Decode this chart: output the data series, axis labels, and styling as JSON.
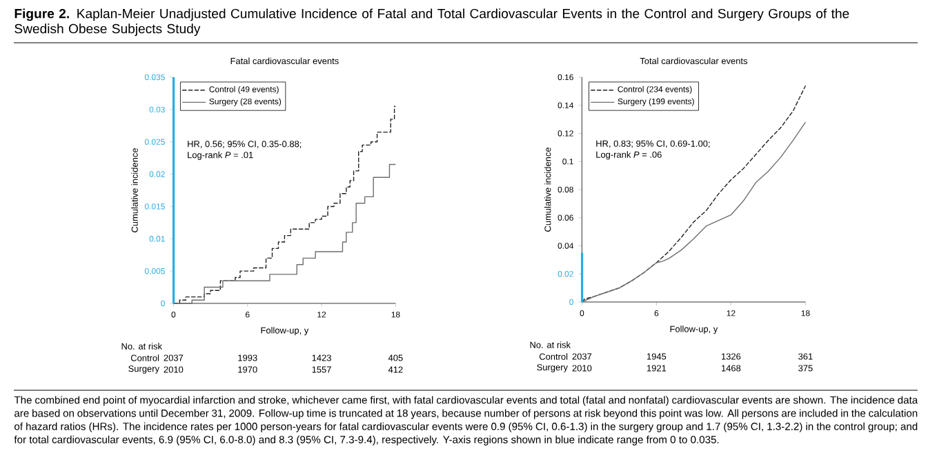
{
  "chart_data": [
    {
      "type": "step",
      "title": "Fatal cardiovascular events",
      "xlabel": "Follow-up, y",
      "ylabel": "Cumulative incidence",
      "xlim": [
        0,
        18
      ],
      "xticks": [
        0,
        6,
        12,
        18
      ],
      "ylim": [
        0,
        0.035
      ],
      "yticks": [
        0,
        0.005,
        0.01,
        0.015,
        0.02,
        0.025,
        0.03,
        0.035
      ],
      "legend": "top left",
      "series": [
        {
          "name": "Control (49 events)",
          "color": "#231f20",
          "line_style": "dashed",
          "x": [
            0,
            0.5,
            1,
            2.5,
            3,
            3.8,
            5,
            5.4,
            6.5,
            7.5,
            8,
            8.5,
            9,
            9.5,
            11,
            11.5,
            12,
            12.5,
            13,
            13.5,
            14,
            14.3,
            14.6,
            15,
            15.3,
            16,
            16.5,
            17.6,
            17.9,
            18
          ],
          "values": [
            0,
            0.0005,
            0.001,
            0.0015,
            0.002,
            0.0035,
            0.004,
            0.005,
            0.0055,
            0.007,
            0.0085,
            0.0095,
            0.0105,
            0.0115,
            0.0125,
            0.013,
            0.0135,
            0.015,
            0.0155,
            0.017,
            0.018,
            0.019,
            0.0205,
            0.0235,
            0.0245,
            0.025,
            0.0265,
            0.0285,
            0.0305,
            0.0305
          ]
        },
        {
          "name": "Surgery (28 events)",
          "color": "#6d6e71",
          "line_style": "solid",
          "x": [
            0,
            1.5,
            2.5,
            4,
            7.8,
            10,
            10.5,
            11.5,
            13.7,
            14,
            14.5,
            14.8,
            15.5,
            16.2,
            17.5,
            18
          ],
          "values": [
            0,
            0.0005,
            0.0025,
            0.0035,
            0.0045,
            0.006,
            0.007,
            0.008,
            0.0095,
            0.011,
            0.0125,
            0.0155,
            0.0165,
            0.0195,
            0.0215,
            0.0215
          ]
        }
      ],
      "annotations": [
        "HR, 0.56; 95% CI, 0.35-0.88;",
        "Log-rank *P* = .01",
        "No. at risk",
        "Control",
        "2037",
        "1993",
        "1423",
        "405",
        "Surgery",
        "2010",
        "1970",
        "1557",
        "412",
        "**Figure 2.** Kaplan-Meier Unadjusted Cumulative Incidence of Fatal and Total Cardiovascular Events in the Control and Surgery Groups of the Swedish Obese Subjects Study",
        "The combined end point of myocardial infarction and stroke, whichever came first, with fatal cardiovascular events and total (fatal and nonfatal) cardiovascular events are shown. The incidence data are based on observations until December 31, 2009. Follow-up time is truncated at 18 years, because number of persons at risk beyond this point was low. All persons are included in the calculation of hazard ratios (HRs). The incidence rates per 1000 person-years for fatal cardiovascular events were 0.9 (95% CI, 0.6-1.3) in the surgery group and 1.7 (95% CI, 1.3-2.2) in the control group; and for total cardiovascular events, 6.9 (95% CI, 6.0-8.0) and 8.3 (95% CI, 7.3-9.4), respectively. Y-axis regions shown in blue indicate range from 0 to 0.035."
      ]
    },
    {
      "type": "line",
      "title": "Total cardiovascular events",
      "xlabel": "Follow-up, y",
      "ylabel": "Cumulative incidence",
      "xlim": [
        0,
        18
      ],
      "xticks": [
        0,
        6,
        12,
        18
      ],
      "ylim": [
        0,
        0.16
      ],
      "yticks": [
        0,
        0.02,
        0.04,
        0.06,
        0.08,
        0.1,
        0.12,
        0.14,
        0.16
      ],
      "legend": "top left",
      "series": [
        {
          "name": "Control (234 events)",
          "color": "#231f20",
          "line_style": "dashed",
          "x": [
            0,
            0.2,
            1,
            2,
            3,
            4,
            5,
            6,
            7,
            8,
            9,
            10,
            11,
            12,
            13,
            14,
            15,
            16,
            17,
            18
          ],
          "values": [
            0,
            0.002,
            0.004,
            0.007,
            0.01,
            0.015,
            0.021,
            0.028,
            0.036,
            0.046,
            0.057,
            0.065,
            0.077,
            0.087,
            0.095,
            0.105,
            0.115,
            0.124,
            0.136,
            0.154
          ]
        },
        {
          "name": "Surgery (199 events)",
          "color": "#6d6e71",
          "line_style": "solid",
          "x": [
            0,
            1,
            2,
            3,
            4,
            5,
            6,
            6.5,
            7,
            8,
            9,
            10,
            11,
            12,
            13,
            14,
            15,
            16,
            17,
            18
          ],
          "values": [
            0,
            0.004,
            0.007,
            0.01,
            0.015,
            0.021,
            0.028,
            0.029,
            0.031,
            0.037,
            0.045,
            0.054,
            0.058,
            0.062,
            0.072,
            0.085,
            0.093,
            0.103,
            0.115,
            0.128
          ]
        }
      ],
      "annotations": [
        "HR, 0.83; 95% CI, 0.69-1.00;",
        "Log-rank *P* = .06",
        "No. at risk",
        "Control",
        "2037",
        "1945",
        "1326",
        "361",
        "Surgery",
        "2010",
        "1921",
        "1468",
        "375"
      ]
    }
  ]
}
